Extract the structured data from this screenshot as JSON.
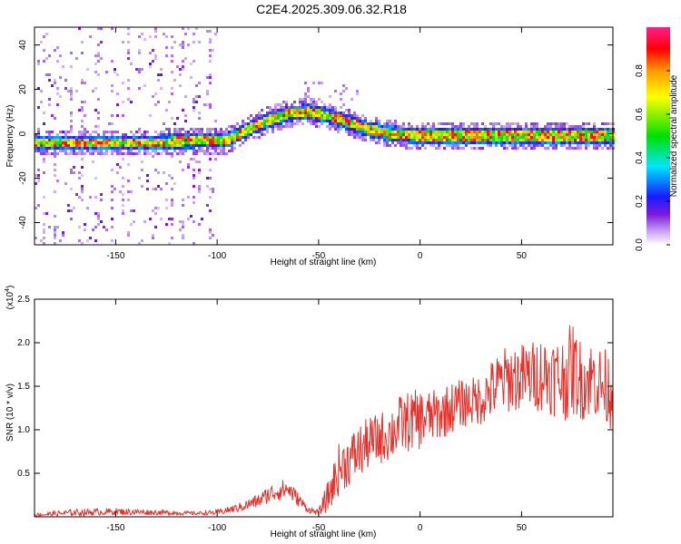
{
  "title": "C2E4.2025.309.06.32.R18",
  "colors": {
    "snr_line": "#e8302a",
    "axis": "#000000",
    "background": "#ffffff"
  },
  "chart_data": [
    {
      "type": "heatmap",
      "xlabel": "Height of straight line (km)",
      "ylabel": "Frequency (Hz)",
      "xlim": [
        -190,
        95
      ],
      "ylim": [
        -50,
        48
      ],
      "xticks": [
        -150,
        -100,
        -50,
        0,
        50
      ],
      "xtick_labels": [
        "-150",
        "-100",
        "-50",
        "0",
        "50"
      ],
      "yticks": [
        -40,
        -20,
        0,
        20,
        40
      ],
      "ytick_labels": [
        "-40",
        "-20",
        "0",
        "20",
        "40"
      ],
      "ridge": {
        "description_points_x": [
          -190,
          -160,
          -130,
          -110,
          -95,
          -85,
          -75,
          -65,
          -55,
          -45,
          -35,
          -25,
          -15,
          0,
          20,
          50,
          95
        ],
        "description_points_freq": [
          -4,
          -4,
          -4,
          -3,
          -3,
          2,
          6,
          9,
          10,
          8,
          5,
          2,
          0,
          -1,
          -1,
          -1,
          -1
        ]
      },
      "colorbar": {
        "label": "Normalized spectral amplitude",
        "range": [
          0,
          1
        ],
        "ticks": [
          0.0,
          0.2,
          0.4,
          0.6,
          0.8
        ],
        "tick_labels": [
          "0.0",
          "0.2",
          "0.4",
          "0.6",
          "0.8"
        ],
        "colormap": [
          "#ffffff",
          "#c9a6f5",
          "#7a1bd8",
          "#1a1aff",
          "#00e5ff",
          "#00e000",
          "#ffff00",
          "#ff9900",
          "#ff0000",
          "#ff1e8c"
        ]
      }
    },
    {
      "type": "line",
      "series_name": "SNR",
      "xlabel": "Height of straight line (km)",
      "ylabel": "SNR (10 * v/v)",
      "yscale_label": "(x10",
      "yscale_exponent": "4",
      "yscale_suffix": ")",
      "xlim": [
        -190,
        95
      ],
      "ylim": [
        0,
        2.5
      ],
      "xticks": [
        -150,
        -100,
        -50,
        0,
        50
      ],
      "xtick_labels": [
        "-150",
        "-100",
        "-50",
        "0",
        "50"
      ],
      "yticks": [
        0.5,
        1.0,
        1.5,
        2.0,
        2.5
      ],
      "ytick_labels": [
        "0.5",
        "1.0",
        "1.5",
        "2.0",
        "2.5"
      ],
      "x": [
        -190,
        -170,
        -150,
        -130,
        -110,
        -100,
        -90,
        -80,
        -75,
        -70,
        -65,
        -60,
        -55,
        -50,
        -45,
        -40,
        -35,
        -30,
        -25,
        -20,
        -15,
        -10,
        -5,
        0,
        5,
        10,
        15,
        20,
        25,
        30,
        35,
        40,
        45,
        50,
        55,
        60,
        65,
        70,
        75,
        80,
        85,
        90,
        95
      ],
      "values": [
        0.02,
        0.05,
        0.06,
        0.05,
        0.04,
        0.05,
        0.1,
        0.18,
        0.25,
        0.3,
        0.32,
        0.2,
        0.08,
        0.05,
        0.25,
        0.55,
        0.65,
        0.75,
        0.85,
        0.9,
        0.95,
        1.05,
        1.1,
        1.12,
        1.15,
        1.18,
        1.25,
        1.3,
        1.32,
        1.35,
        1.45,
        1.55,
        1.6,
        1.6,
        1.62,
        1.65,
        1.62,
        1.58,
        1.7,
        1.55,
        1.6,
        1.5,
        1.45
      ],
      "noise_amp": [
        0.02,
        0.04,
        0.04,
        0.03,
        0.02,
        0.03,
        0.05,
        0.08,
        0.1,
        0.12,
        0.12,
        0.08,
        0.04,
        0.03,
        0.2,
        0.3,
        0.3,
        0.32,
        0.3,
        0.3,
        0.32,
        0.35,
        0.35,
        0.35,
        0.3,
        0.3,
        0.3,
        0.28,
        0.28,
        0.3,
        0.35,
        0.38,
        0.4,
        0.4,
        0.4,
        0.45,
        0.45,
        0.5,
        0.55,
        0.45,
        0.45,
        0.45,
        0.45
      ]
    }
  ]
}
